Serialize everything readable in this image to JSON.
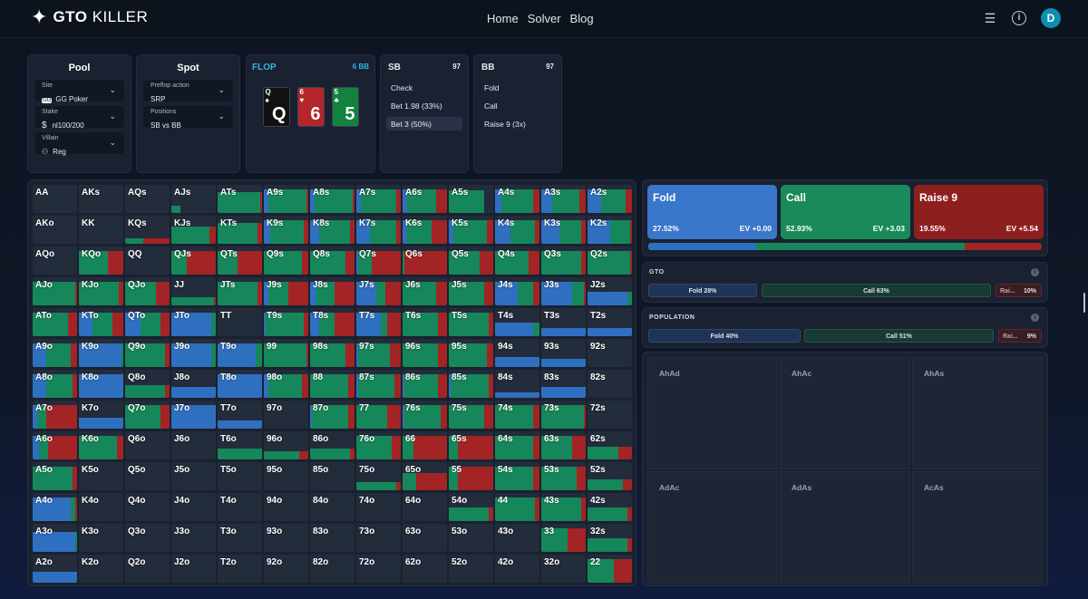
{
  "nav": {
    "brand_bold": "GTO",
    "brand_light": "KILLER",
    "links": [
      "Home",
      "Solver",
      "Blog"
    ],
    "avatar_letter": "D"
  },
  "pool": {
    "title": "Pool",
    "site_label": "Site",
    "site_badge": "GG",
    "site_value": "GG Poker",
    "stake_label": "Stake",
    "stake_value": "nl100/200",
    "villain_label": "Villain",
    "villain_value": "Reg"
  },
  "spot": {
    "title": "Spot",
    "preflop_label": "Preflop action",
    "preflop_value": "SRP",
    "positions_label": "Positions",
    "positions_value": "SB vs BB"
  },
  "flop": {
    "title": "FLOP",
    "pot": "6 BB",
    "cards": [
      {
        "rank": "Q",
        "suit": "♠",
        "color": "#111111"
      },
      {
        "rank": "6",
        "suit": "♥",
        "color": "#b3262b"
      },
      {
        "rank": "5",
        "suit": "♣",
        "color": "#12833f"
      }
    ]
  },
  "sb": {
    "title": "SB",
    "stack": "97",
    "actions": [
      "Check",
      "Bet 1.98 (33%)",
      "Bet 3 (50%)"
    ],
    "selected": 2
  },
  "bb": {
    "title": "BB",
    "stack": "97",
    "actions": [
      "Fold",
      "Call",
      "Raise 9 (3x)"
    ]
  },
  "colors": {
    "fold": "#2f6fc0",
    "call": "#15875a",
    "raise": "#a32424",
    "fold_box": "#3a76c9",
    "call_box": "#1a8a5a",
    "raise_box": "#8e1f1f"
  },
  "strategy": {
    "fold": {
      "name": "Fold",
      "pct": "27.52%",
      "ev": "EV +0.00",
      "value": 27.52
    },
    "call": {
      "name": "Call",
      "pct": "52.93%",
      "ev": "EV +3.03",
      "value": 52.93
    },
    "raise": {
      "name": "Raise 9",
      "pct": "19.55%",
      "ev": "EV +5.54",
      "value": 19.55
    }
  },
  "gto": {
    "title": "GTO",
    "fold": "Fold 28%",
    "call": "Call 63%",
    "raise_abbr": "Rai...",
    "raise_pct": "10%",
    "values": [
      28,
      63,
      10
    ]
  },
  "population": {
    "title": "POPULATION",
    "fold": "Fold 40%",
    "call": "Call 51%",
    "raise_abbr": "Rai...",
    "raise_pct": "9%",
    "values": [
      40,
      51,
      9
    ]
  },
  "combos": [
    "AhAd",
    "AhAc",
    "AhAs",
    "AdAc",
    "AdAs",
    "AcAs"
  ],
  "range_grid": [
    [
      [
        "AA",
        0,
        0,
        0,
        0
      ],
      [
        "AKs",
        0,
        0,
        0,
        0
      ],
      [
        "AQs",
        0,
        0,
        0,
        0
      ],
      [
        "AJs",
        0,
        0.2,
        0,
        0.25
      ],
      [
        "ATs",
        0,
        0.95,
        0.05,
        0.75
      ],
      [
        "A9s",
        0.1,
        0.85,
        0.05,
        0.85
      ],
      [
        "A8s",
        0.1,
        0.85,
        0.05,
        0.85
      ],
      [
        "A7s",
        0.1,
        0.8,
        0.1,
        0.85
      ],
      [
        "A6s",
        0.1,
        0.65,
        0.25,
        0.85
      ],
      [
        "A5s",
        0,
        0.8,
        0,
        0.8
      ],
      [
        "A4s",
        0.15,
        0.7,
        0.15,
        0.85
      ],
      [
        "A3s",
        0.25,
        0.6,
        0.15,
        0.85
      ],
      [
        "A2s",
        0.3,
        0.55,
        0.15,
        0.85
      ]
    ],
    [
      [
        "AKo",
        0,
        0,
        0,
        0
      ],
      [
        "KK",
        0,
        0,
        0,
        0
      ],
      [
        "KQs",
        0,
        0.4,
        0.6,
        0.2
      ],
      [
        "KJs",
        0,
        0.85,
        0.15,
        0.6
      ],
      [
        "KTs",
        0,
        0.9,
        0.1,
        0.75
      ],
      [
        "K9s",
        0.15,
        0.75,
        0.1,
        0.85
      ],
      [
        "K8s",
        0.2,
        0.7,
        0.1,
        0.85
      ],
      [
        "K7s",
        0.3,
        0.6,
        0.1,
        0.85
      ],
      [
        "K6s",
        0.1,
        0.55,
        0.35,
        0.85
      ],
      [
        "K5s",
        0.1,
        0.75,
        0.15,
        0.85
      ],
      [
        "K4s",
        0.35,
        0.55,
        0.1,
        0.85
      ],
      [
        "K3s",
        0.4,
        0.5,
        0.1,
        0.85
      ],
      [
        "K2s",
        0.5,
        0.45,
        0.05,
        0.85
      ]
    ],
    [
      [
        "AQo",
        0,
        0,
        0,
        0
      ],
      [
        "KQo",
        0,
        0.65,
        0.35,
        0.85
      ],
      [
        "QQ",
        0,
        0,
        0,
        0
      ],
      [
        "QJs",
        0,
        0.35,
        0.65,
        0.85
      ],
      [
        "QTs",
        0,
        0.45,
        0.55,
        0.85
      ],
      [
        "Q9s",
        0,
        0.85,
        0.15,
        0.85
      ],
      [
        "Q8s",
        0,
        0.8,
        0.2,
        0.85
      ],
      [
        "Q7s",
        0.05,
        0.3,
        0.65,
        0.85
      ],
      [
        "Q6s",
        0,
        0.05,
        0.95,
        0.85
      ],
      [
        "Q5s",
        0,
        0.7,
        0.3,
        0.85
      ],
      [
        "Q4s",
        0,
        0.75,
        0.25,
        0.85
      ],
      [
        "Q3s",
        0,
        0.9,
        0.1,
        0.85
      ],
      [
        "Q2s",
        0,
        0.95,
        0.05,
        0.85
      ]
    ],
    [
      [
        "AJo",
        0,
        0.95,
        0.05,
        0.85
      ],
      [
        "KJo",
        0,
        0.9,
        0.1,
        0.85
      ],
      [
        "QJo",
        0,
        0.7,
        0.3,
        0.85
      ],
      [
        "JJ",
        0,
        0.95,
        0.05,
        0.3
      ],
      [
        "JTs",
        0,
        0.9,
        0.1,
        0.85
      ],
      [
        "J9s",
        0.1,
        0.45,
        0.45,
        0.85
      ],
      [
        "J8s",
        0.15,
        0.4,
        0.45,
        0.85
      ],
      [
        "J7s",
        0.45,
        0.2,
        0.35,
        0.85
      ],
      [
        "J6s",
        0,
        0.75,
        0.25,
        0.85
      ],
      [
        "J5s",
        0,
        0.8,
        0.2,
        0.85
      ],
      [
        "J4s",
        0.5,
        0.35,
        0.15,
        0.85
      ],
      [
        "J3s",
        0.7,
        0.25,
        0.05,
        0.85
      ],
      [
        "J2s",
        0.9,
        0.1,
        0,
        0.5
      ]
    ],
    [
      [
        "ATo",
        0,
        0.8,
        0.2,
        0.85
      ],
      [
        "KTo",
        0.3,
        0.45,
        0.25,
        0.85
      ],
      [
        "QTo",
        0.35,
        0.45,
        0.2,
        0.85
      ],
      [
        "JTo",
        0.9,
        0.1,
        0,
        0.85
      ],
      [
        "TT",
        0,
        0,
        0,
        0
      ],
      [
        "T9s",
        0.05,
        0.85,
        0.1,
        0.85
      ],
      [
        "T8s",
        0.2,
        0.35,
        0.45,
        0.85
      ],
      [
        "T7s",
        0.55,
        0.15,
        0.3,
        0.85
      ],
      [
        "T6s",
        0,
        0.8,
        0.2,
        0.85
      ],
      [
        "T5s",
        0,
        0.9,
        0.1,
        0.85
      ],
      [
        "T4s",
        0.85,
        0.15,
        0,
        0.5
      ],
      [
        "T3s",
        1,
        0,
        0,
        0.3
      ],
      [
        "T2s",
        1,
        0,
        0,
        0.3
      ]
    ],
    [
      [
        "A9o",
        0.3,
        0.55,
        0.15,
        0.85
      ],
      [
        "K9o",
        0.95,
        0.05,
        0,
        0.85
      ],
      [
        "Q9o",
        0,
        0.9,
        0.1,
        0.85
      ],
      [
        "J9o",
        0.9,
        0.1,
        0,
        0.85
      ],
      [
        "T9o",
        0.85,
        0.15,
        0,
        0.85
      ],
      [
        "99",
        0,
        0.95,
        0.05,
        0.85
      ],
      [
        "98s",
        0,
        0.8,
        0.2,
        0.85
      ],
      [
        "97s",
        0.05,
        0.7,
        0.25,
        0.85
      ],
      [
        "96s",
        0,
        0.8,
        0.2,
        0.85
      ],
      [
        "95s",
        0,
        0.85,
        0.15,
        0.85
      ],
      [
        "94s",
        1,
        0,
        0,
        0.35
      ],
      [
        "93s",
        1,
        0,
        0,
        0.3
      ],
      [
        "92s",
        1,
        0,
        0,
        0.0
      ]
    ],
    [
      [
        "A8o",
        0.3,
        0.6,
        0.1,
        0.85
      ],
      [
        "K8o",
        1,
        0,
        0,
        0.85
      ],
      [
        "Q8o",
        0,
        0.9,
        0.1,
        0.45
      ],
      [
        "J8o",
        1,
        0,
        0,
        0.4
      ],
      [
        "T8o",
        1,
        0,
        0,
        0.85
      ],
      [
        "98o",
        0.1,
        0.75,
        0.15,
        0.85
      ],
      [
        "88",
        0,
        0.85,
        0.15,
        0.85
      ],
      [
        "87s",
        0.05,
        0.8,
        0.15,
        0.85
      ],
      [
        "86s",
        0.05,
        0.75,
        0.2,
        0.85
      ],
      [
        "85s",
        0.05,
        0.85,
        0.1,
        0.85
      ],
      [
        "84s",
        1,
        0,
        0,
        0.2
      ],
      [
        "83s",
        1,
        0,
        0,
        0.4
      ],
      [
        "82s",
        1,
        0,
        0,
        0.0
      ]
    ],
    [
      [
        "A7o",
        0.1,
        0.2,
        0.7,
        0.85
      ],
      [
        "K7o",
        1,
        0,
        0,
        0.4
      ],
      [
        "Q7o",
        0,
        0.8,
        0.2,
        0.85
      ],
      [
        "J7o",
        1,
        0,
        0,
        0.85
      ],
      [
        "T7o",
        1,
        0,
        0,
        0.3
      ],
      [
        "97o",
        0,
        0,
        0,
        0
      ],
      [
        "87o",
        0.05,
        0.8,
        0.15,
        0.85
      ],
      [
        "77",
        0,
        0.7,
        0.3,
        0.85
      ],
      [
        "76s",
        0.05,
        0.8,
        0.15,
        0.85
      ],
      [
        "75s",
        0,
        0.8,
        0.2,
        0.85
      ],
      [
        "74s",
        0,
        0.85,
        0.15,
        0.85
      ],
      [
        "73s",
        0,
        0.95,
        0.05,
        0.85
      ],
      [
        "72s",
        0,
        0,
        0,
        0
      ]
    ],
    [
      [
        "A6o",
        0.15,
        0.2,
        0.65,
        0.85
      ],
      [
        "K6o",
        0,
        0.85,
        0.15,
        0.85
      ],
      [
        "Q6o",
        0,
        0,
        0,
        0
      ],
      [
        "J6o",
        0,
        0,
        0,
        0
      ],
      [
        "T6o",
        0,
        1,
        0,
        0.4
      ],
      [
        "96o",
        0,
        0.8,
        0.2,
        0.3
      ],
      [
        "86o",
        0,
        0.9,
        0.1,
        0.4
      ],
      [
        "76o",
        0,
        0.8,
        0.2,
        0.85
      ],
      [
        "66",
        0,
        0.25,
        0.75,
        0.85
      ],
      [
        "65s",
        0,
        0.2,
        0.8,
        0.85
      ],
      [
        "64s",
        0,
        0.85,
        0.15,
        0.85
      ],
      [
        "63s",
        0,
        0.7,
        0.3,
        0.85
      ],
      [
        "62s",
        0,
        0.7,
        0.3,
        0.45
      ]
    ],
    [
      [
        "A5o",
        0,
        0.9,
        0.1,
        0.85
      ],
      [
        "K5o",
        0,
        0,
        0,
        0
      ],
      [
        "Q5o",
        0,
        0,
        0,
        0
      ],
      [
        "J5o",
        0,
        0,
        0,
        0
      ],
      [
        "T5o",
        0,
        0,
        0,
        0
      ],
      [
        "95o",
        0,
        0,
        0,
        0
      ],
      [
        "85o",
        0,
        0,
        0,
        0
      ],
      [
        "75o",
        0,
        0.9,
        0.1,
        0.3
      ],
      [
        "65o",
        0,
        0.3,
        0.7,
        0.6
      ],
      [
        "55",
        0,
        0.2,
        0.8,
        0.85
      ],
      [
        "54s",
        0,
        0.85,
        0.15,
        0.85
      ],
      [
        "53s",
        0,
        0.8,
        0.2,
        0.85
      ],
      [
        "52s",
        0,
        0.8,
        0.2,
        0.4
      ]
    ],
    [
      [
        "A4o",
        0.85,
        0.1,
        0.05,
        0.85
      ],
      [
        "K4o",
        0,
        0,
        0,
        0
      ],
      [
        "Q4o",
        0,
        0,
        0,
        0
      ],
      [
        "J4o",
        0,
        0,
        0,
        0
      ],
      [
        "T4o",
        0,
        0,
        0,
        0
      ],
      [
        "94o",
        0,
        0,
        0,
        0
      ],
      [
        "84o",
        0,
        0,
        0,
        0
      ],
      [
        "74o",
        0,
        0,
        0,
        0
      ],
      [
        "64o",
        0,
        0,
        0,
        0
      ],
      [
        "54o",
        0,
        0.9,
        0.1,
        0.5
      ],
      [
        "44",
        0,
        0.9,
        0.1,
        0.85
      ],
      [
        "43s",
        0,
        0.9,
        0.1,
        0.85
      ],
      [
        "42s",
        0,
        0.9,
        0.1,
        0.5
      ]
    ],
    [
      [
        "A3o",
        0.95,
        0.05,
        0,
        0.7
      ],
      [
        "K3o",
        0,
        0,
        0,
        0
      ],
      [
        "Q3o",
        0,
        0,
        0,
        0
      ],
      [
        "J3o",
        0,
        0,
        0,
        0
      ],
      [
        "T3o",
        0,
        0,
        0,
        0
      ],
      [
        "93o",
        0,
        0,
        0,
        0
      ],
      [
        "83o",
        0,
        0,
        0,
        0
      ],
      [
        "73o",
        0,
        0,
        0,
        0
      ],
      [
        "63o",
        0,
        0,
        0,
        0
      ],
      [
        "53o",
        0,
        0,
        0,
        0
      ],
      [
        "43o",
        0,
        0,
        0,
        0
      ],
      [
        "33",
        0,
        0.6,
        0.4,
        0.85
      ],
      [
        "32s",
        0,
        0.9,
        0.1,
        0.5
      ]
    ],
    [
      [
        "A2o",
        1,
        0,
        0,
        0.4
      ],
      [
        "K2o",
        0,
        0,
        0,
        0
      ],
      [
        "Q2o",
        0,
        0,
        0,
        0
      ],
      [
        "J2o",
        0,
        0,
        0,
        0
      ],
      [
        "T2o",
        0,
        0,
        0,
        0
      ],
      [
        "92o",
        0,
        0,
        0,
        0
      ],
      [
        "82o",
        0,
        0,
        0,
        0
      ],
      [
        "72o",
        0,
        0,
        0,
        0
      ],
      [
        "62o",
        0,
        0,
        0,
        0
      ],
      [
        "52o",
        0,
        0,
        0,
        0
      ],
      [
        "42o",
        0,
        0,
        0,
        0
      ],
      [
        "32o",
        0,
        0,
        0,
        0
      ],
      [
        "22",
        0,
        0.6,
        0.4,
        0.85
      ]
    ]
  ]
}
